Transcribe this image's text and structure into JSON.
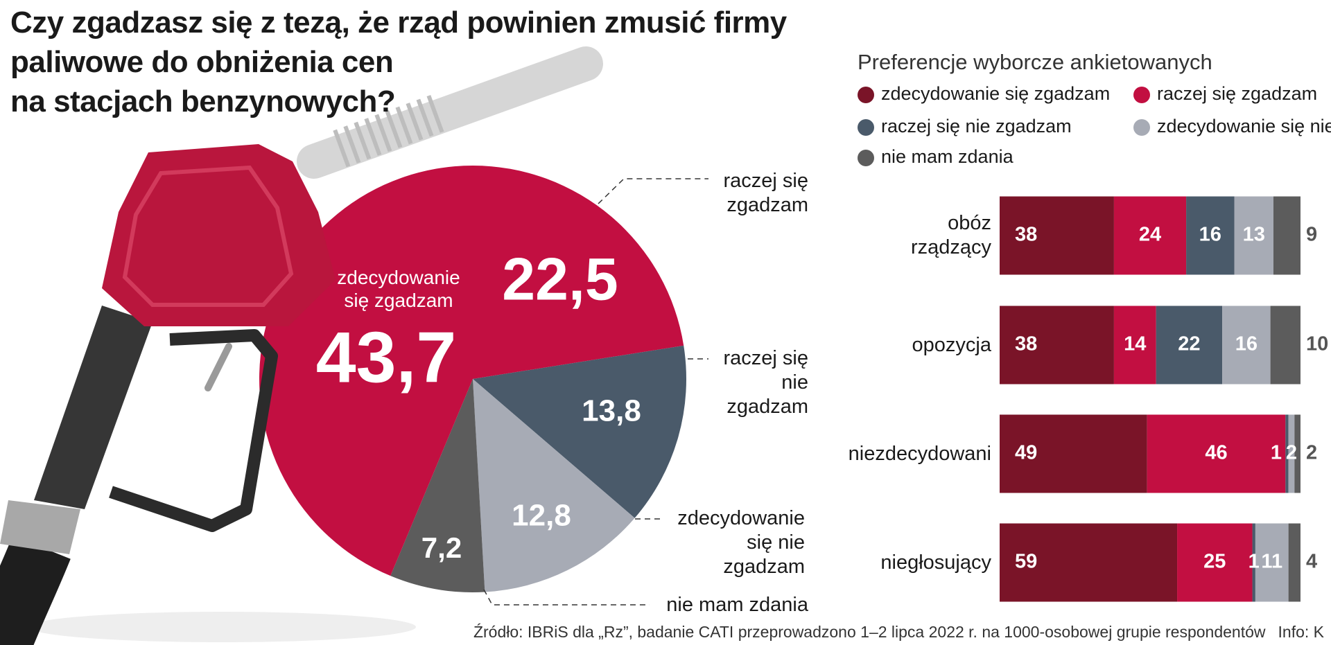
{
  "title": "Czy zgadzasz się z tezą, że rząd powinien zmusić firmy paliwowe do obniżenia cen na stacjach benzynowych?",
  "source": "Źródło: IBRiS dla „Rz”, badanie CATI przeprowadzono 1–2 lipca 2022 r. na 1000-osobowej grupie respondentów",
  "credit": "Info: K",
  "chart_data": [
    {
      "type": "pie",
      "categories": [
        "raczej się zgadzam",
        "raczej się nie zgadzam",
        "zdecydowanie się nie zgadzam",
        "nie mam zdania",
        "zdecydowanie się zgadzam"
      ],
      "values": [
        22.5,
        13.8,
        12.8,
        7.2,
        43.7
      ],
      "value_labels": [
        "22,5",
        "13,8",
        "12,8",
        "7,2",
        "43,7"
      ],
      "colors": [
        "#c20f41",
        "#4a5a6a",
        "#a7abb5",
        "#5c5c5c",
        "#c20f41"
      ]
    },
    {
      "type": "bar",
      "orientation": "horizontal",
      "stacked": true,
      "title": "Preferencje wyborcze ankietowanych",
      "categories": [
        "obóz rządzący",
        "opozycja",
        "niezdecydowani",
        "niegłosujący"
      ],
      "xlim": [
        0,
        100
      ],
      "series": [
        {
          "name": "zdecydowanie się zgadzam",
          "color": "#7a1428",
          "values": [
            38,
            38,
            49,
            59
          ]
        },
        {
          "name": "raczej się zgadzam",
          "color": "#c20f41",
          "values": [
            24,
            14,
            46,
            25
          ]
        },
        {
          "name": "raczej się nie zgadzam",
          "color": "#4a5a6a",
          "values": [
            16,
            22,
            1,
            1
          ]
        },
        {
          "name": "zdecydowanie się nie zgadzam",
          "color": "#a7abb5",
          "values": [
            13,
            16,
            2,
            11
          ]
        },
        {
          "name": "nie mam zdania",
          "color": "#5c5c5c",
          "values": [
            9,
            10,
            2,
            4
          ]
        }
      ]
    }
  ]
}
